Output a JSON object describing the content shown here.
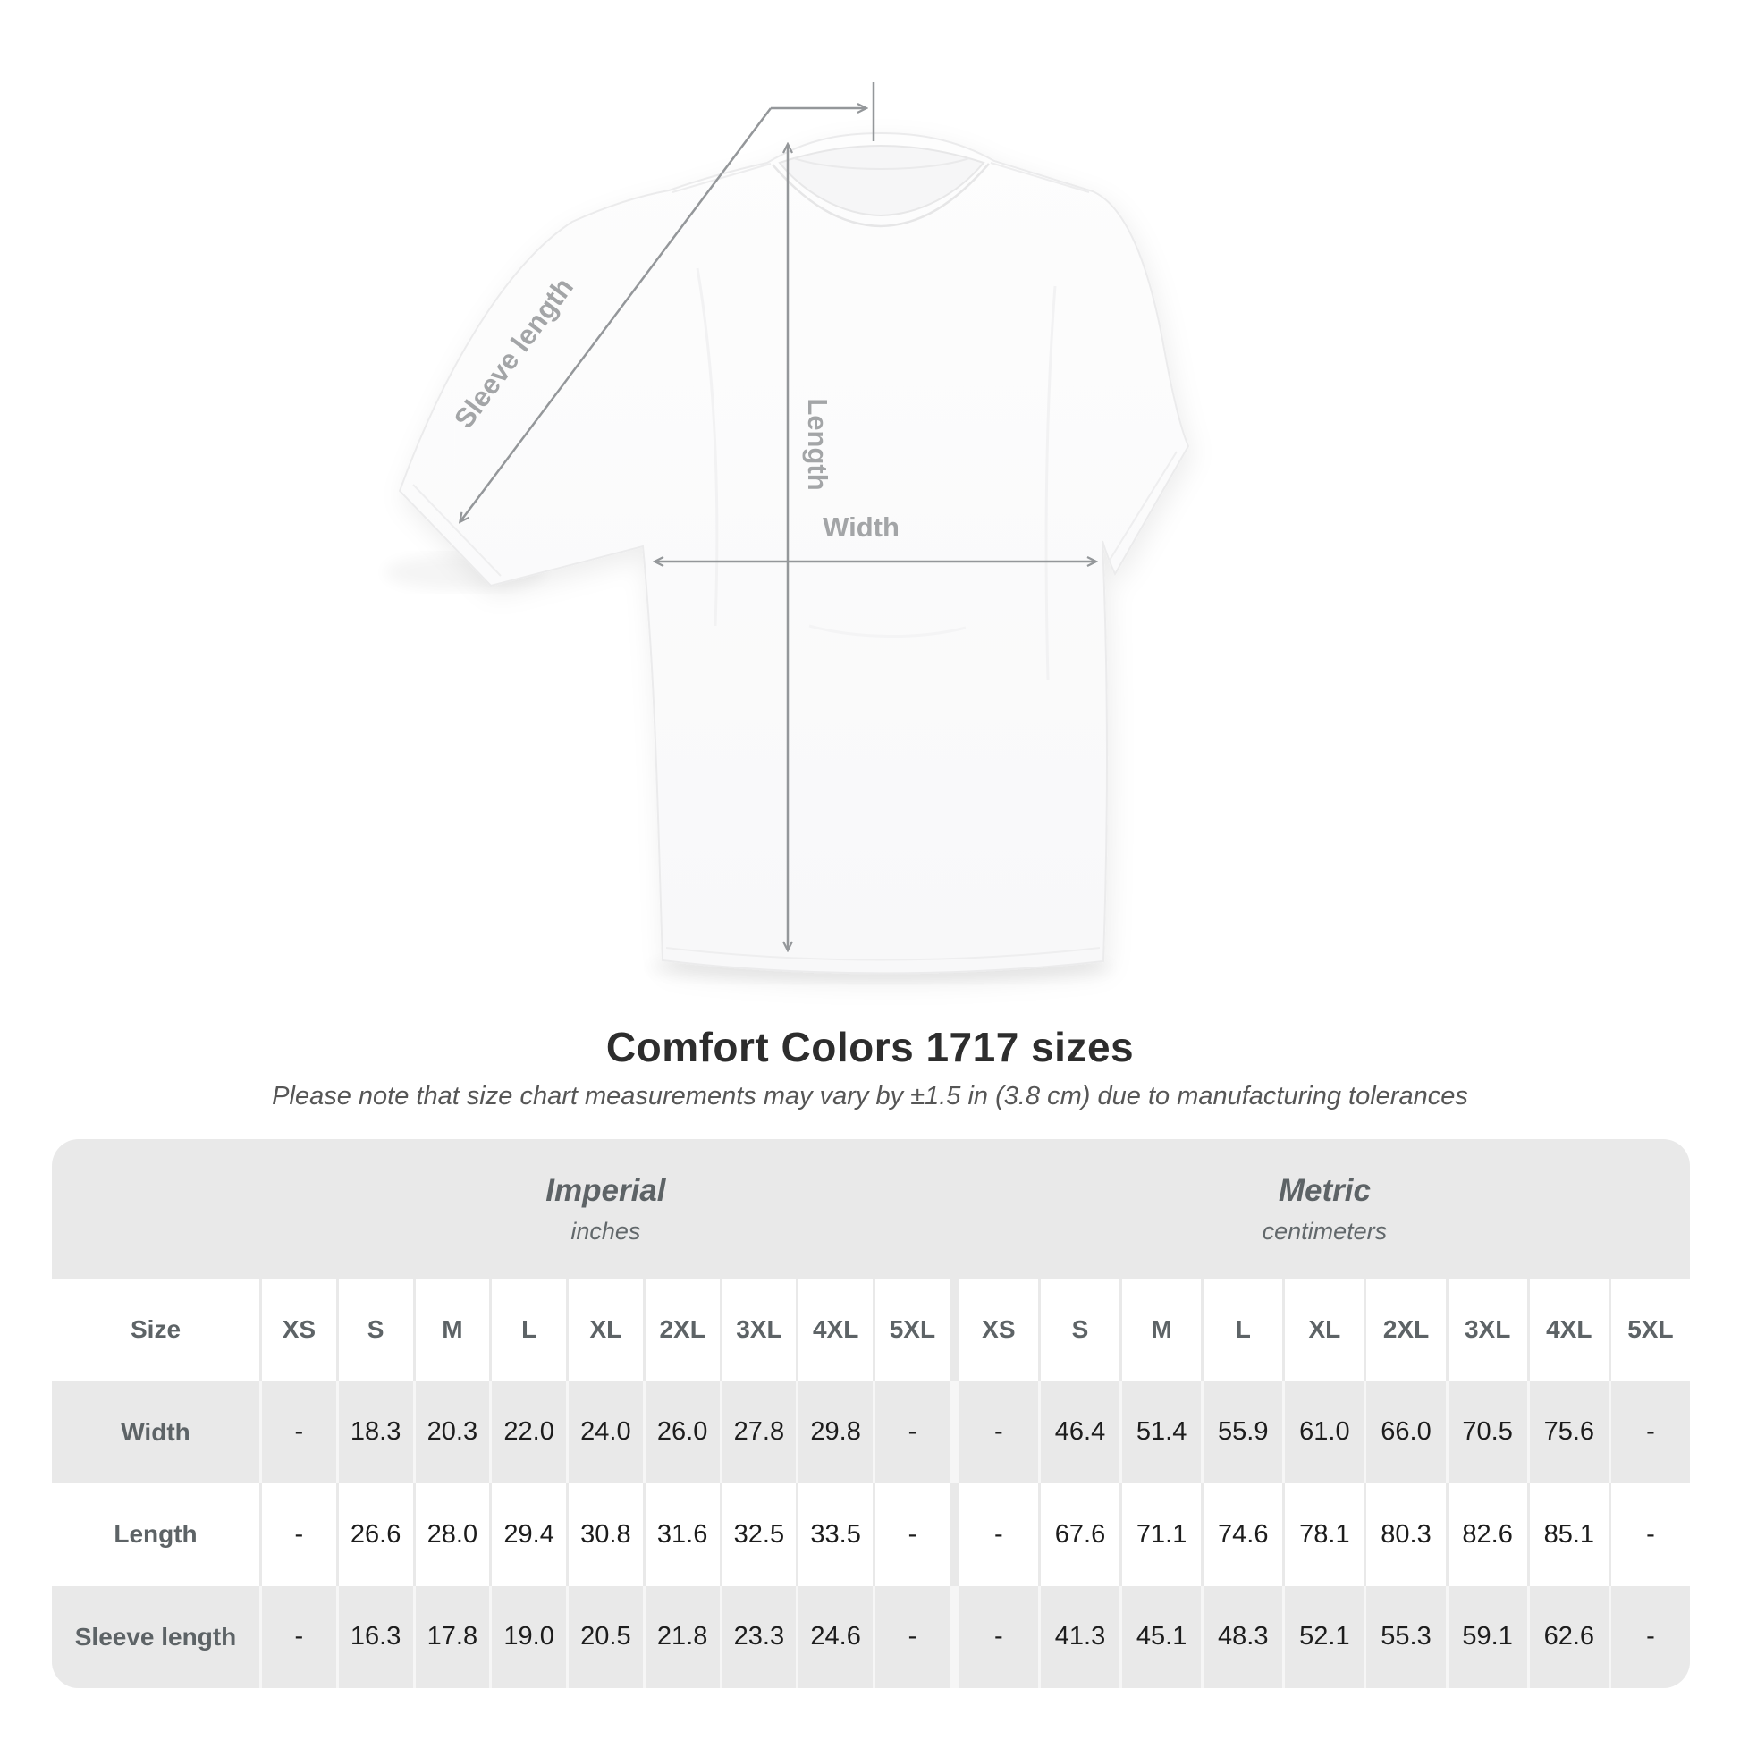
{
  "title": "Comfort Colors 1717 sizes",
  "subtitle": "Please note that size chart measurements may vary by ±1.5 in (3.8 cm) due to manufacturing tolerances",
  "diagram": {
    "sleeve_length_label": "Sleeve length",
    "length_label": "Length",
    "width_label": "Width",
    "line_color": "#94979a",
    "label_color": "#a3a5a7"
  },
  "chart_data": {
    "type": "table",
    "title": "Comfort Colors 1717 sizes",
    "corner_label": "Size",
    "groups": [
      {
        "label": "Imperial",
        "unit": "inches"
      },
      {
        "label": "Metric",
        "unit": "centimeters"
      }
    ],
    "size_columns": [
      "XS",
      "S",
      "M",
      "L",
      "XL",
      "2XL",
      "3XL",
      "4XL",
      "5XL"
    ],
    "rows": [
      {
        "label": "Width",
        "imperial": [
          "-",
          "18.3",
          "20.3",
          "22.0",
          "24.0",
          "26.0",
          "27.8",
          "29.8",
          "-"
        ],
        "metric": [
          "-",
          "46.4",
          "51.4",
          "55.9",
          "61.0",
          "66.0",
          "70.5",
          "75.6",
          "-"
        ]
      },
      {
        "label": "Length",
        "imperial": [
          "-",
          "26.6",
          "28.0",
          "29.4",
          "30.8",
          "31.6",
          "32.5",
          "33.5",
          "-"
        ],
        "metric": [
          "-",
          "67.6",
          "71.1",
          "74.6",
          "78.1",
          "80.3",
          "82.6",
          "85.1",
          "-"
        ]
      },
      {
        "label": "Sleeve length",
        "imperial": [
          "-",
          "16.3",
          "17.8",
          "19.0",
          "20.5",
          "21.8",
          "23.3",
          "24.6",
          "-"
        ],
        "metric": [
          "-",
          "41.3",
          "45.1",
          "48.3",
          "52.1",
          "55.3",
          "59.1",
          "62.6",
          "-"
        ]
      }
    ]
  }
}
